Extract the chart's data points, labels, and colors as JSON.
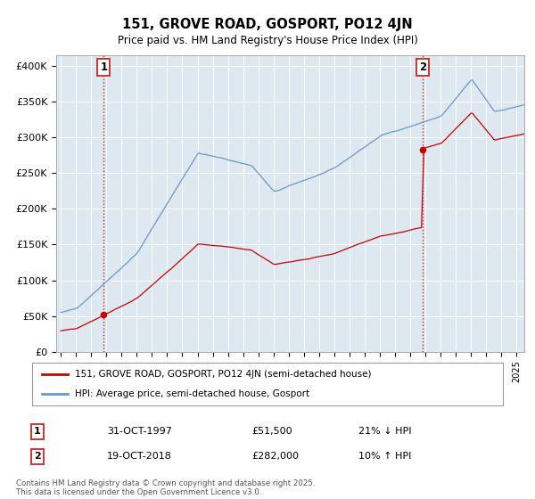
{
  "title": "151, GROVE ROAD, GOSPORT, PO12 4JN",
  "subtitle": "Price paid vs. HM Land Registry's House Price Index (HPI)",
  "ylabel_ticks": [
    "£0",
    "£50K",
    "£100K",
    "£150K",
    "£200K",
    "£250K",
    "£300K",
    "£350K",
    "£400K"
  ],
  "y_values": [
    0,
    50000,
    100000,
    150000,
    200000,
    250000,
    300000,
    350000,
    400000
  ],
  "ylim": [
    0,
    415000
  ],
  "xlim_start": 1994.7,
  "xlim_end": 2025.5,
  "marker1_x": 1997.83,
  "marker1_y": 51500,
  "marker1_label": "1",
  "marker1_date": "31-OCT-1997",
  "marker1_price": "£51,500",
  "marker1_hpi": "21% ↓ HPI",
  "marker2_x": 2018.8,
  "marker2_y": 282000,
  "marker2_label": "2",
  "marker2_date": "19-OCT-2018",
  "marker2_price": "£282,000",
  "marker2_hpi": "10% ↑ HPI",
  "legend_line1": "151, GROVE ROAD, GOSPORT, PO12 4JN (semi-detached house)",
  "legend_line2": "HPI: Average price, semi-detached house, Gosport",
  "footnote": "Contains HM Land Registry data © Crown copyright and database right 2025.\nThis data is licensed under the Open Government Licence v3.0.",
  "line_color_red": "#cc0000",
  "line_color_blue": "#6699cc",
  "bg_color": "#dde8f0",
  "grid_color": "#ffffff",
  "vline_color": "#cc0000",
  "marker_box_color": "#cc3333"
}
